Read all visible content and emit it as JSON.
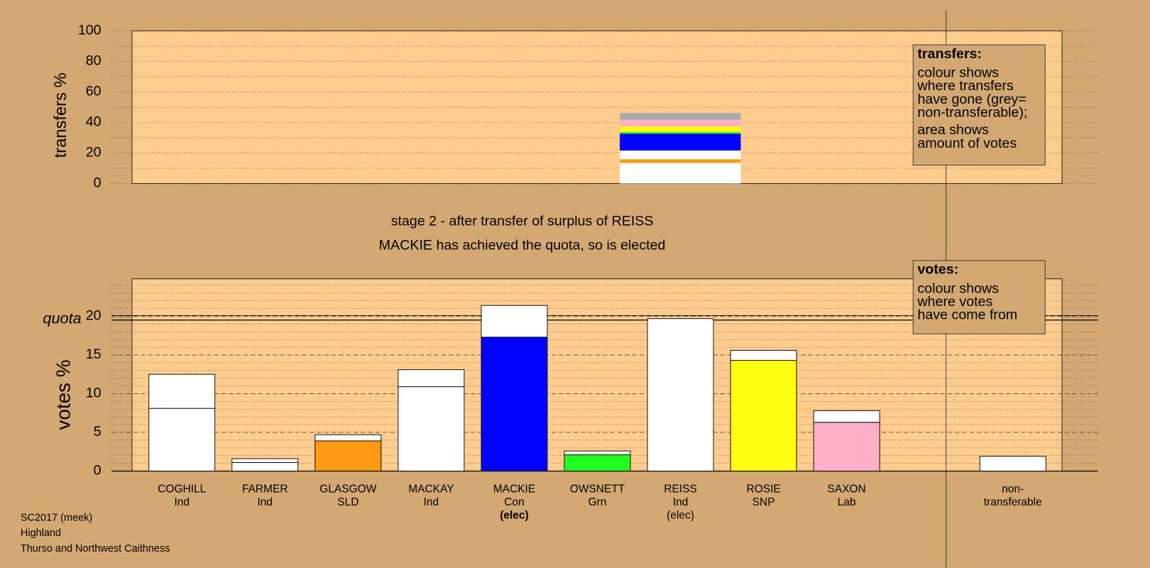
{
  "chart_data": [
    {
      "type": "stacked-column",
      "ylabel": "transfers %",
      "ylim": [
        0,
        100
      ],
      "yticks": [
        0,
        20,
        40,
        60,
        80,
        100
      ],
      "minor_yticks": [
        10,
        30,
        50,
        70,
        90
      ],
      "values": [
        12,
        1.5,
        2.4,
        5.7,
        11.1,
        1.0,
        3.8,
        4.3,
        4.4
      ],
      "colors": [
        "#ffffff",
        "#ffffff",
        "#ff9a14",
        "#ffffff",
        "#0000ff",
        "#22ff22",
        "#ffff14",
        "#ffb0c8",
        "#aaaaaa"
      ]
    },
    {
      "type": "stacked-bar",
      "ylabel": "votes %",
      "ylim": [
        0,
        25
      ],
      "yticks": [
        0,
        5,
        10,
        15,
        20
      ],
      "minor_yticks": [
        1,
        2,
        3,
        4,
        6,
        7,
        8,
        9,
        11,
        12,
        13,
        14,
        16,
        17,
        18,
        19,
        21,
        22,
        23,
        24
      ],
      "quota": 19.8,
      "quota_label": "quota",
      "categories": [
        "COGHILL",
        "FARMER",
        "GLASGOW",
        "MACKAY",
        "MACKIE",
        "OWSNETT",
        "REISS",
        "ROSIE",
        "SAXON",
        "non-transferable"
      ],
      "parties": [
        "Ind",
        "Ind",
        "SLD",
        "Ind",
        "Con",
        "Grn",
        "Ind",
        "SNP",
        "Lab",
        null
      ],
      "status": [
        null,
        null,
        null,
        null,
        "(elec)",
        null,
        "(elec)",
        null,
        null,
        null
      ],
      "status_bold": [
        false,
        false,
        false,
        false,
        true,
        false,
        false,
        false,
        false,
        false
      ],
      "series": [
        {
          "values": [
            8.1,
            1.1,
            3.9,
            10.9,
            17.3,
            2.1,
            19.7,
            14.3,
            6.3,
            1.9
          ],
          "colors": [
            "#ffffff",
            "#ffffff",
            "#ff9a14",
            "#ffffff",
            "#0000ff",
            "#22ff22",
            "#ffffff",
            "#ffff14",
            "#ffb0c8",
            "#ffffff"
          ]
        },
        {
          "values": [
            4.4,
            0.5,
            0.8,
            2.2,
            4.1,
            0.5,
            0,
            1.3,
            1.5,
            null
          ],
          "color": "#ffffff"
        }
      ]
    }
  ],
  "stage_title": "stage 2 - after transfer of surplus of REISS",
  "stage_subtitle": "MACKIE has achieved the quota, so is elected",
  "transfers_box": {
    "title": "transfers:",
    "paragraphs": [
      [
        "colour shows",
        "where transfers",
        "have gone (grey=",
        "non-transferable);"
      ],
      [
        "area shows",
        "amount of votes"
      ]
    ]
  },
  "votes_box": {
    "title": "votes:",
    "paragraphs": [
      [
        "colour shows",
        "where votes",
        "have come from"
      ]
    ]
  },
  "footer": [
    "SC2017 (meek)",
    "Highland",
    "Thurso and Northwest Caithness"
  ]
}
